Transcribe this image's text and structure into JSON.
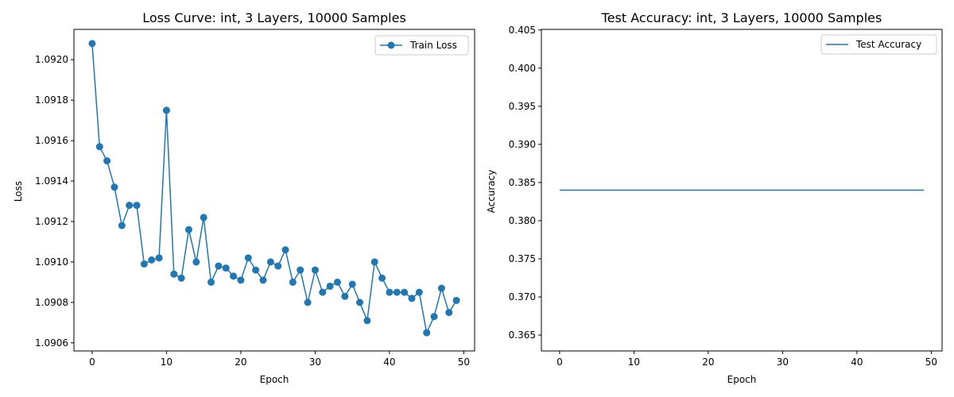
{
  "colors": {
    "series": "#1f77b4",
    "axes": "#000000",
    "background": "#ffffff"
  },
  "chart_data": [
    {
      "type": "line",
      "title": "Loss Curve: int, 3 Layers, 10000 Samples",
      "xlabel": "Epoch",
      "ylabel": "Loss",
      "xlim": [
        -2.45,
        51.45
      ],
      "ylim": [
        1.09056,
        1.09215
      ],
      "xticks": [
        0,
        10,
        20,
        30,
        40,
        50
      ],
      "yticks": [
        1.0906,
        1.0908,
        1.091,
        1.0912,
        1.0914,
        1.0916,
        1.0918,
        1.092
      ],
      "ytick_labels": [
        "1.0906",
        "1.0908",
        "1.0910",
        "1.0912",
        "1.0914",
        "1.0916",
        "1.0918",
        "1.0920"
      ],
      "legend": {
        "position": "top-right",
        "entries": [
          "Train Loss"
        ]
      },
      "grid": false,
      "series": [
        {
          "name": "Train Loss",
          "marker": "circle",
          "x": [
            0,
            1,
            2,
            3,
            4,
            5,
            6,
            7,
            8,
            9,
            10,
            11,
            12,
            13,
            14,
            15,
            16,
            17,
            18,
            19,
            20,
            21,
            22,
            23,
            24,
            25,
            26,
            27,
            28,
            29,
            30,
            31,
            32,
            33,
            34,
            35,
            36,
            37,
            38,
            39,
            40,
            41,
            42,
            43,
            44,
            45,
            46,
            47,
            48,
            49
          ],
          "values": [
            1.09208,
            1.09157,
            1.0915,
            1.09137,
            1.09118,
            1.09128,
            1.09128,
            1.09099,
            1.09101,
            1.09102,
            1.09175,
            1.09094,
            1.09092,
            1.09116,
            1.091,
            1.09122,
            1.0909,
            1.09098,
            1.09097,
            1.09093,
            1.09091,
            1.09102,
            1.09096,
            1.09091,
            1.091,
            1.09098,
            1.09106,
            1.0909,
            1.09096,
            1.0908,
            1.09096,
            1.09085,
            1.09088,
            1.0909,
            1.09083,
            1.09089,
            1.0908,
            1.09071,
            1.091,
            1.09092,
            1.09085,
            1.09085,
            1.09085,
            1.09082,
            1.09085,
            1.09065,
            1.09073,
            1.09087,
            1.09075,
            1.09081
          ]
        }
      ]
    },
    {
      "type": "line",
      "title": "Test Accuracy: int, 3 Layers, 10000 Samples",
      "xlabel": "Epoch",
      "ylabel": "Accuracy",
      "xlim": [
        -2.45,
        51.45
      ],
      "ylim": [
        0.36292,
        0.40508
      ],
      "xticks": [
        0,
        10,
        20,
        30,
        40,
        50
      ],
      "yticks": [
        0.365,
        0.37,
        0.375,
        0.38,
        0.385,
        0.39,
        0.395,
        0.4,
        0.405
      ],
      "ytick_labels": [
        "0.365",
        "0.370",
        "0.375",
        "0.380",
        "0.385",
        "0.390",
        "0.395",
        "0.400",
        "0.405"
      ],
      "legend": {
        "position": "top-right",
        "entries": [
          "Test Accuracy"
        ]
      },
      "grid": false,
      "series": [
        {
          "name": "Test Accuracy",
          "marker": "none",
          "x": [
            0,
            49
          ],
          "values": [
            0.384,
            0.384
          ]
        }
      ]
    }
  ]
}
